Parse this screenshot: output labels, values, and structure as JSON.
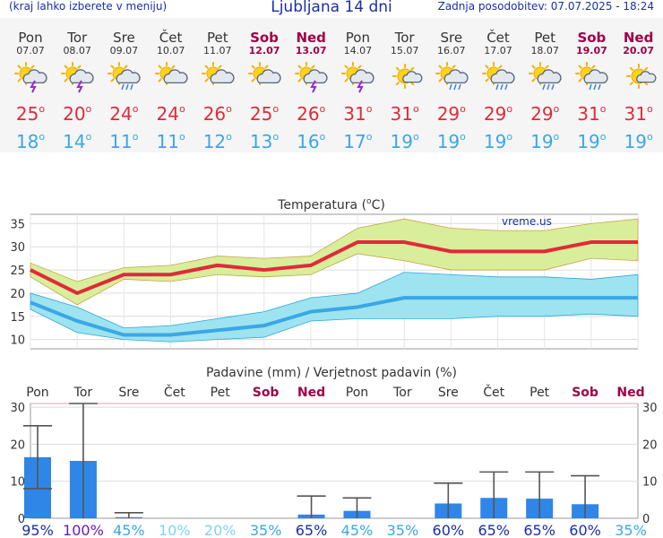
{
  "header": {
    "menu_hint": "(kraj lahko izberete v meniju)",
    "title": "Ljubljana 14 dni",
    "updated": "Zadnja posodobitev: 07.07.2025 - 18:24"
  },
  "degree_symbol": "o",
  "watermark": "vreme.us",
  "colors": {
    "weekday_text": "#333333",
    "weekend_text": "#a00046",
    "tmax": "#e02a3a",
    "tmin": "#3aa7e6",
    "tmax_band": "#d8ee9a",
    "tmin_band": "#9ee3f0",
    "precip_bar": "#2f86e6"
  },
  "forecast": [
    {
      "day": "Pon",
      "date": "07.07",
      "weekend": false,
      "icon": "partly-cloudy-thunderstorm-icon",
      "tmax": "25",
      "tmin": "18"
    },
    {
      "day": "Tor",
      "date": "08.07",
      "weekend": false,
      "icon": "partly-cloudy-thunderstorm-icon",
      "tmax": "20",
      "tmin": "14"
    },
    {
      "day": "Sre",
      "date": "09.07",
      "weekend": false,
      "icon": "partly-cloudy-rain-icon",
      "tmax": "24",
      "tmin": "11"
    },
    {
      "day": "Čet",
      "date": "10.07",
      "weekend": false,
      "icon": "partly-cloudy-icon",
      "tmax": "24",
      "tmin": "11"
    },
    {
      "day": "Pet",
      "date": "11.07",
      "weekend": false,
      "icon": "partly-cloudy-icon",
      "tmax": "26",
      "tmin": "12"
    },
    {
      "day": "Sob",
      "date": "12.07",
      "weekend": true,
      "icon": "partly-cloudy-icon",
      "tmax": "25",
      "tmin": "13"
    },
    {
      "day": "Ned",
      "date": "13.07",
      "weekend": true,
      "icon": "partly-cloudy-thunderstorm-icon",
      "tmax": "26",
      "tmin": "16"
    },
    {
      "day": "Pon",
      "date": "14.07",
      "weekend": false,
      "icon": "partly-cloudy-thunderstorm-icon",
      "tmax": "31",
      "tmin": "17"
    },
    {
      "day": "Tor",
      "date": "15.07",
      "weekend": false,
      "icon": "mostly-sunny-icon",
      "tmax": "31",
      "tmin": "19"
    },
    {
      "day": "Sre",
      "date": "16.07",
      "weekend": false,
      "icon": "partly-cloudy-rain-icon",
      "tmax": "29",
      "tmin": "19"
    },
    {
      "day": "Čet",
      "date": "17.07",
      "weekend": false,
      "icon": "partly-cloudy-rain-icon",
      "tmax": "29",
      "tmin": "19"
    },
    {
      "day": "Pet",
      "date": "18.07",
      "weekend": false,
      "icon": "partly-cloudy-rain-icon",
      "tmax": "29",
      "tmin": "19"
    },
    {
      "day": "Sob",
      "date": "19.07",
      "weekend": true,
      "icon": "partly-cloudy-rain-icon",
      "tmax": "31",
      "tmin": "19"
    },
    {
      "day": "Ned",
      "date": "20.07",
      "weekend": true,
      "icon": "mostly-sunny-icon",
      "tmax": "31",
      "tmin": "19"
    }
  ],
  "chart_data": [
    {
      "type": "line",
      "title": "Temperatura (°C)",
      "title_main": "Temperatura (",
      "title_unit": "C)",
      "x": [
        "Pon",
        "Tor",
        "Sre",
        "Čet",
        "Pet",
        "Sob",
        "Ned",
        "Pon",
        "Tor",
        "Sre",
        "Čet",
        "Pet",
        "Sob",
        "Ned"
      ],
      "ylim": [
        8,
        37
      ],
      "yticks": [
        10,
        15,
        20,
        25,
        30,
        35
      ],
      "grid": true,
      "series": [
        {
          "values": [
            25,
            20,
            24,
            24,
            26,
            25,
            26,
            31,
            31,
            29,
            29,
            29,
            31,
            31
          ],
          "upper": [
            26.5,
            22.5,
            25.5,
            26,
            28,
            27.5,
            28,
            34,
            36,
            34,
            33.5,
            33.5,
            35,
            36
          ],
          "lower": [
            23.5,
            17.5,
            23,
            22.5,
            24,
            23.5,
            24,
            28.5,
            27,
            25,
            25,
            25,
            27.5,
            27
          ]
        },
        {
          "values": [
            18,
            14,
            11,
            11,
            12,
            13,
            16,
            17,
            19,
            19,
            19,
            19,
            19,
            19
          ],
          "upper": [
            20,
            17,
            12.5,
            13,
            14.5,
            16,
            19,
            20,
            24.5,
            24,
            23.5,
            23.5,
            23,
            24
          ],
          "lower": [
            16.5,
            11.5,
            10,
            9.5,
            10,
            10.5,
            14,
            14.5,
            14.5,
            14.5,
            15,
            15,
            15.5,
            15
          ]
        }
      ]
    },
    {
      "type": "bar",
      "title": "Padavine (mm) / Verjetnost padavin (%)",
      "categories": [
        "Pon",
        "Tor",
        "Sre",
        "Čet",
        "Pet",
        "Sob",
        "Ned",
        "Pon",
        "Tor",
        "Sre",
        "Čet",
        "Pet",
        "Sob",
        "Ned"
      ],
      "values": [
        16.5,
        15.5,
        0.3,
        0,
        0,
        0,
        1,
        2,
        0,
        4,
        5.5,
        5.3,
        3.8,
        0
      ],
      "error_high": [
        25,
        31,
        1.5,
        0,
        0,
        0,
        6,
        5.5,
        0,
        9.5,
        12.5,
        12.5,
        11.5,
        0
      ],
      "error_low": [
        8,
        0,
        0,
        0,
        0,
        0,
        0,
        0,
        0,
        0,
        0,
        0,
        0,
        0
      ],
      "ylim": [
        0,
        31
      ],
      "yticks": [
        0,
        10,
        20,
        30
      ],
      "probabilities": [
        "95%",
        "100%",
        "45%",
        "10%",
        "20%",
        "35%",
        "65%",
        "45%",
        "35%",
        "60%",
        "65%",
        "65%",
        "60%",
        "35%"
      ],
      "probability_colors": [
        "#1a2ea6",
        "#6a1ab8",
        "#3aa7e6",
        "#7fd3f5",
        "#7fd3f5",
        "#3aa7e6",
        "#1a2ea6",
        "#3aa7e6",
        "#3aa7e6",
        "#1a2ea6",
        "#1a2ea6",
        "#1a2ea6",
        "#1a2ea6",
        "#3aa7e6"
      ]
    }
  ]
}
